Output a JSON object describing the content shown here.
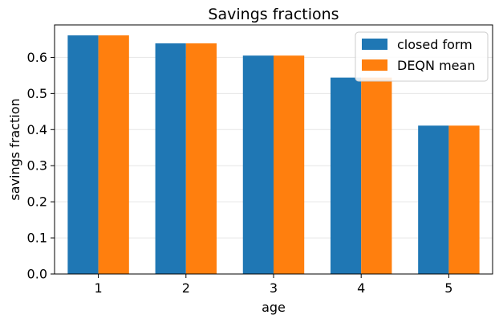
{
  "chart_data": {
    "type": "bar",
    "title": "Savings fractions",
    "xlabel": "age",
    "ylabel": "savings fraction",
    "categories": [
      "1",
      "2",
      "3",
      "4",
      "5"
    ],
    "series": [
      {
        "name": "closed form",
        "color": "#1f77b4",
        "values": [
          0.661,
          0.639,
          0.605,
          0.544,
          0.411
        ]
      },
      {
        "name": "DEQN mean",
        "color": "#ff7f0e",
        "values": [
          0.661,
          0.639,
          0.605,
          0.544,
          0.411
        ]
      }
    ],
    "ylim": [
      0,
      0.69
    ],
    "yticks": [
      "0.0",
      "0.1",
      "0.2",
      "0.3",
      "0.4",
      "0.5",
      "0.6"
    ],
    "grid": "horizontal",
    "legend_position": "top-right"
  }
}
